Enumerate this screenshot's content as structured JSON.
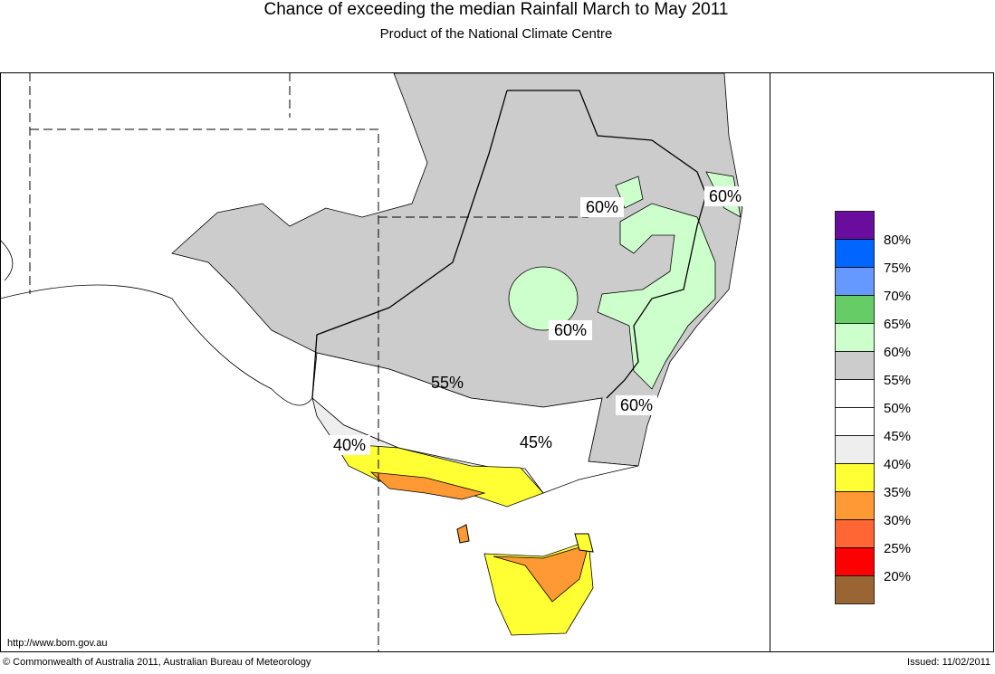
{
  "header": {
    "title": "Chance of exceeding the median Rainfall March to May 2011",
    "subtitle": "Product of the National Climate Centre"
  },
  "map": {
    "contour_labels": [
      "60%",
      "60%",
      "60%",
      "60%",
      "55%",
      "45%",
      "40%"
    ]
  },
  "legend": {
    "labels": [
      "80%",
      "75%",
      "70%",
      "65%",
      "60%",
      "55%",
      "50%",
      "45%",
      "40%",
      "35%",
      "30%",
      "25%",
      "20%"
    ],
    "colors": [
      "#6a0d9e",
      "#0066ff",
      "#6699ff",
      "#66cc66",
      "#ccffcc",
      "#cccccc",
      "#ffffff",
      "#ffffff",
      "#eeeeee",
      "#ffff33",
      "#ff9933",
      "#ff6633",
      "#ff0000",
      "#996633"
    ]
  },
  "footer": {
    "url": "http://www.bom.gov.au",
    "copyright": "© Commonwealth of Australia 2011, Australian Bureau of Meteorology",
    "issued": "Issued: 11/02/2011"
  }
}
